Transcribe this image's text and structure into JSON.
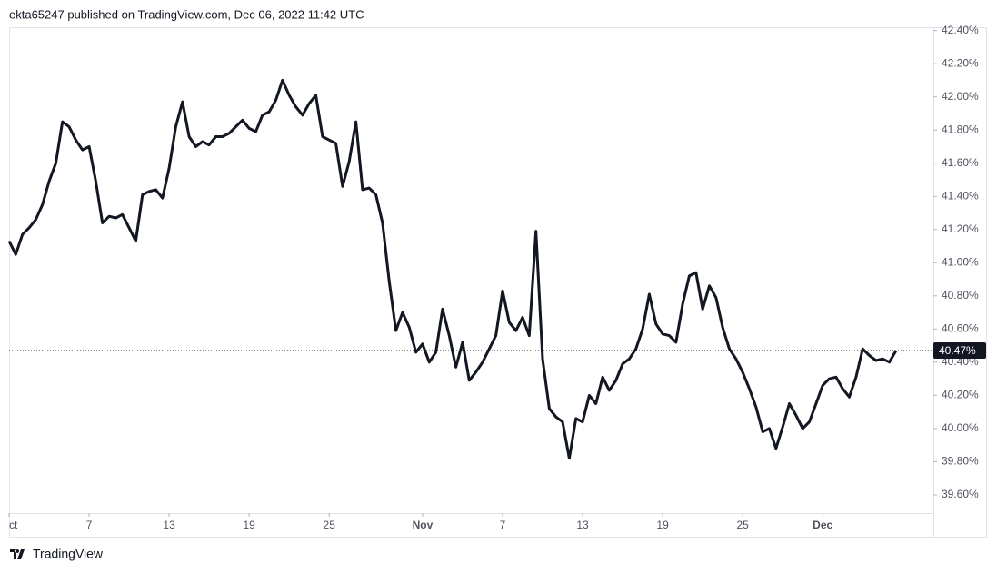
{
  "header": "ekta65247 published on TradingView.com, Dec 06, 2022 11:42 UTC",
  "brand": "TradingView",
  "chart_data": {
    "type": "line",
    "color": "#131722",
    "x": [
      1,
      1.5,
      2,
      2.5,
      3,
      3.5,
      4,
      4.5,
      5,
      5.5,
      6,
      6.5,
      7,
      7.5,
      8,
      8.5,
      9,
      9.5,
      10,
      10.5,
      11,
      11.5,
      12,
      12.5,
      13,
      13.5,
      14,
      14.5,
      15,
      15.5,
      16,
      16.5,
      17,
      17.5,
      18,
      18.5,
      19,
      19.5,
      20,
      20.5,
      21,
      21.5,
      22,
      22.5,
      23,
      23.5,
      24,
      24.5,
      25,
      25.5,
      26,
      26.5,
      27,
      27.5,
      28,
      28.5,
      29,
      29.5,
      30,
      30.5,
      31,
      31.5,
      32,
      32.5,
      33,
      33.5,
      34,
      34.5,
      35,
      35.5,
      36,
      36.5,
      37,
      37.5,
      38,
      38.5,
      39,
      39.5,
      40,
      40.5,
      41,
      41.5,
      42,
      42.5,
      43,
      43.5,
      44,
      44.5,
      45,
      45.5,
      46,
      46.5,
      47,
      47.5,
      48,
      48.5,
      49,
      49.5,
      50,
      50.5,
      51,
      51.5,
      52,
      52.5,
      53,
      53.5,
      54,
      54.5,
      55,
      55.5,
      56,
      56.5,
      57,
      57.5,
      58,
      58.5,
      59,
      59.5,
      60,
      60.5,
      61,
      61.5,
      62,
      62.5,
      63,
      63.5,
      64,
      64.5,
      65,
      65.5,
      66,
      66.5,
      67,
      67.5
    ],
    "values": [
      41.13,
      41.05,
      41.17,
      41.21,
      41.26,
      41.35,
      41.49,
      41.6,
      41.85,
      41.82,
      41.74,
      41.68,
      41.7,
      41.49,
      41.24,
      41.28,
      41.27,
      41.29,
      41.21,
      41.13,
      41.41,
      41.43,
      41.44,
      41.39,
      41.57,
      41.82,
      41.97,
      41.76,
      41.7,
      41.73,
      41.71,
      41.76,
      41.76,
      41.78,
      41.82,
      41.86,
      41.81,
      41.79,
      41.89,
      41.91,
      41.98,
      42.1,
      42.01,
      41.94,
      41.89,
      41.96,
      42.01,
      41.76,
      41.74,
      41.72,
      41.46,
      41.61,
      41.85,
      41.44,
      41.45,
      41.41,
      41.24,
      40.89,
      40.59,
      40.7,
      40.61,
      40.46,
      40.51,
      40.4,
      40.46,
      40.72,
      40.56,
      40.37,
      40.52,
      40.29,
      40.34,
      40.4,
      40.48,
      40.56,
      40.83,
      40.64,
      40.59,
      40.67,
      40.56,
      41.19,
      40.42,
      40.12,
      40.07,
      40.04,
      39.82,
      40.06,
      40.04,
      40.2,
      40.15,
      40.31,
      40.23,
      40.29,
      40.39,
      40.42,
      40.48,
      40.6,
      40.81,
      40.63,
      40.57,
      40.56,
      40.52,
      40.75,
      40.92,
      40.94,
      40.72,
      40.86,
      40.79,
      40.61,
      40.48,
      40.42,
      40.34,
      40.24,
      40.13,
      39.98,
      40,
      39.88,
      40.01,
      40.15,
      40.08,
      40,
      40.04,
      40.15,
      40.26,
      40.3,
      40.31,
      40.24,
      40.19,
      40.31,
      40.48,
      40.44,
      40.41,
      40.42,
      40.4,
      40.47
    ],
    "xlim": [
      1,
      70.3
    ],
    "xticks": [
      {
        "value": 1,
        "label": "ct"
      },
      7,
      13,
      19,
      25,
      {
        "value": 32,
        "label": "Nov"
      },
      {
        "value": 38,
        "label": "7"
      },
      {
        "value": 44,
        "label": "13"
      },
      {
        "value": 50,
        "label": "19"
      },
      {
        "value": 56,
        "label": "25"
      },
      {
        "value": 62,
        "label": "Dec"
      }
    ],
    "ylim": [
      39.49,
      42.42
    ],
    "yticks": [
      {
        "value": 42.4,
        "label": "42.40%"
      },
      {
        "value": 42.2,
        "label": "42.20%"
      },
      {
        "value": 42.0,
        "label": "42.00%"
      },
      {
        "value": 41.8,
        "label": "41.80%"
      },
      {
        "value": 41.6,
        "label": "41.60%"
      },
      {
        "value": 41.4,
        "label": "41.40%"
      },
      {
        "value": 41.2,
        "label": "41.20%"
      },
      {
        "value": 41.0,
        "label": "41.00%"
      },
      {
        "value": 40.8,
        "label": "40.80%"
      },
      {
        "value": 40.6,
        "label": "40.60%"
      },
      {
        "value": 40.4,
        "label": "40.40%"
      },
      {
        "value": 40.2,
        "label": "40.20%"
      },
      {
        "value": 40.0,
        "label": "40.00%"
      },
      {
        "value": 39.8,
        "label": "39.80%"
      },
      {
        "value": 39.6,
        "label": "39.60%"
      }
    ],
    "last_value": 40.47,
    "last_value_label": "40.47%"
  }
}
